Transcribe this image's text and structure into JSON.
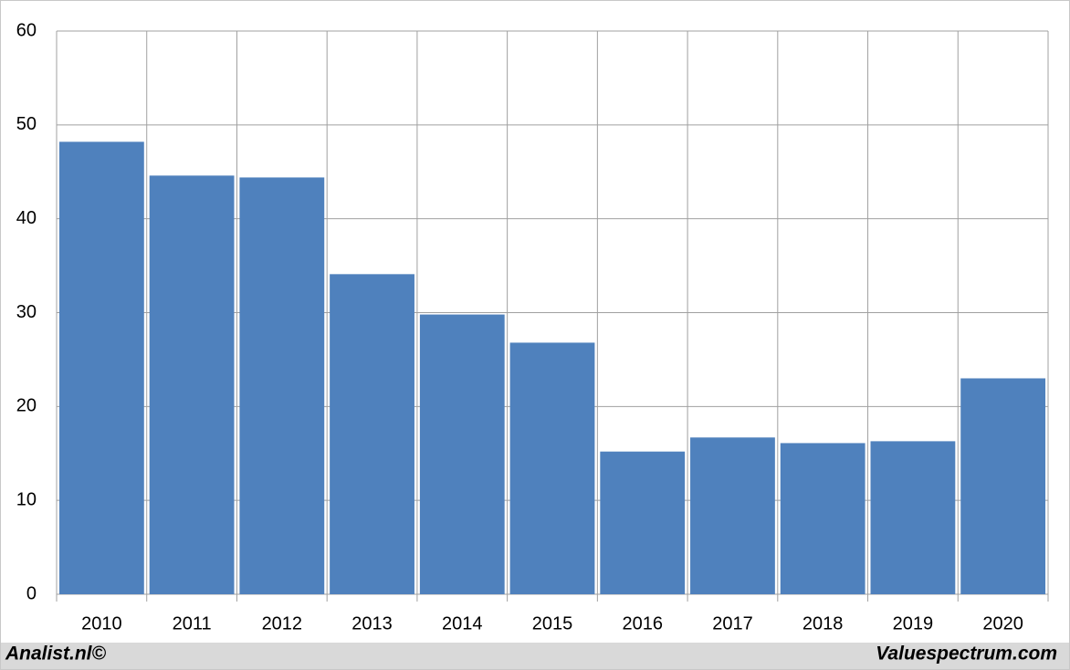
{
  "chart_data": {
    "type": "bar",
    "categories": [
      "2010",
      "2011",
      "2012",
      "2013",
      "2014",
      "2015",
      "2016",
      "2017",
      "2018",
      "2019",
      "2020"
    ],
    "values": [
      48.2,
      44.6,
      44.4,
      34.1,
      29.8,
      26.8,
      15.2,
      16.7,
      16.1,
      16.3,
      23.0
    ],
    "color": "#4f81bd",
    "ylim": [
      0,
      60
    ],
    "yticks": [
      0,
      10,
      20,
      30,
      40,
      50,
      60
    ],
    "grid": true,
    "footer_left": "Analist.nl©",
    "footer_right": "Valuespectrum.com"
  }
}
